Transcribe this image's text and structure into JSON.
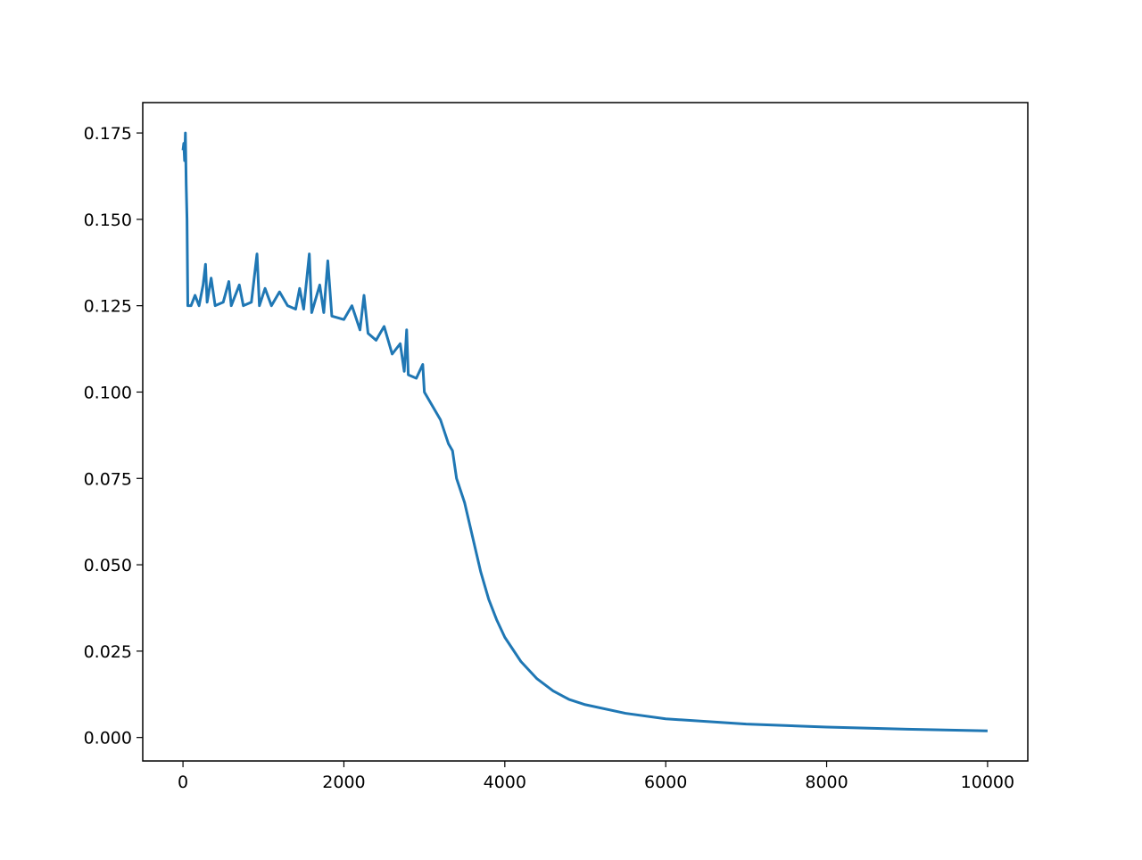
{
  "chart_data": {
    "type": "line",
    "x": [
      0,
      10,
      20,
      30,
      40,
      50,
      60,
      100,
      150,
      200,
      250,
      280,
      300,
      350,
      400,
      500,
      570,
      600,
      700,
      750,
      850,
      920,
      950,
      1020,
      1100,
      1200,
      1300,
      1400,
      1450,
      1500,
      1570,
      1600,
      1700,
      1750,
      1800,
      1850,
      2000,
      2100,
      2200,
      2250,
      2300,
      2400,
      2500,
      2600,
      2700,
      2750,
      2780,
      2800,
      2900,
      2980,
      3000,
      3100,
      3200,
      3300,
      3350,
      3400,
      3500,
      3600,
      3700,
      3800,
      3900,
      4000,
      4200,
      4400,
      4600,
      4800,
      5000,
      5500,
      6000,
      7000,
      8000,
      9000,
      10000
    ],
    "series": [
      {
        "color": "#1f77b4",
        "values": [
          0.17,
          0.172,
          0.167,
          0.175,
          0.16,
          0.15,
          0.125,
          0.125,
          0.128,
          0.125,
          0.131,
          0.137,
          0.126,
          0.133,
          0.125,
          0.126,
          0.132,
          0.125,
          0.131,
          0.125,
          0.126,
          0.14,
          0.125,
          0.13,
          0.125,
          0.129,
          0.125,
          0.124,
          0.13,
          0.124,
          0.14,
          0.123,
          0.131,
          0.123,
          0.138,
          0.122,
          0.121,
          0.125,
          0.118,
          0.128,
          0.117,
          0.115,
          0.119,
          0.111,
          0.114,
          0.106,
          0.118,
          0.105,
          0.104,
          0.108,
          0.1,
          0.096,
          0.092,
          0.085,
          0.083,
          0.075,
          0.068,
          0.058,
          0.048,
          0.04,
          0.034,
          0.029,
          0.022,
          0.017,
          0.0135,
          0.011,
          0.0095,
          0.007,
          0.0054,
          0.0039,
          0.003,
          0.0024,
          0.0019
        ]
      }
    ],
    "xlim": [
      -500,
      10500
    ],
    "xticks": [
      0,
      2000,
      4000,
      6000,
      8000,
      10000
    ],
    "ylim": [
      -0.0068,
      0.1838
    ],
    "yticks": [
      {
        "value": 0,
        "label": "0.000"
      },
      {
        "value": 0.025,
        "label": "0.025"
      },
      {
        "value": 0.05,
        "label": "0.050"
      },
      {
        "value": 0.075,
        "label": "0.075"
      },
      {
        "value": 0.1,
        "label": "0.100"
      },
      {
        "value": 0.125,
        "label": "0.125"
      },
      {
        "value": 0.15,
        "label": "0.150"
      },
      {
        "value": 0.175,
        "label": "0.175"
      }
    ],
    "grid": false
  }
}
